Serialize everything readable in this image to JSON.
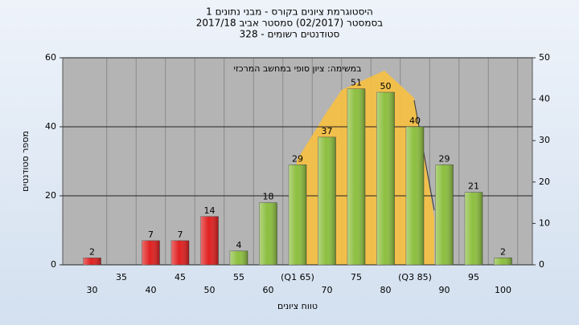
{
  "chart_data": {
    "type": "bar",
    "title": [
      "היסטוגרמת ציונים בקורס - מבני נתונים 1",
      "בסמסטר  (02/2017)  סמסטר אביב 2017/18",
      "סטודנטים רשומים - 328"
    ],
    "annotation": "במשימה: ציון סופי במחשב המרכזי",
    "x_label": "טווח ציונים",
    "y_label": "מספר סטודנטים",
    "categories": [
      "30",
      "35",
      "40",
      "45",
      "50",
      "55",
      "60",
      "(Q1 65)",
      "70",
      "75",
      "80",
      "(Q3 85)",
      "90",
      "95",
      "100"
    ],
    "values": [
      2,
      null,
      7,
      7,
      14,
      4,
      18,
      29,
      37,
      51,
      50,
      40,
      29,
      21,
      2
    ],
    "colors": [
      "#e02020",
      "#e02020",
      "#e02020",
      "#e02020",
      "#e02020",
      "#8cbf3f",
      "#8cbf3f",
      "#8cbf3f",
      "#8cbf3f",
      "#8cbf3f",
      "#8cbf3f",
      "#8cbf3f",
      "#8cbf3f",
      "#8cbf3f",
      "#8cbf3f"
    ],
    "ylim": [
      0,
      60
    ],
    "yticks": [
      0,
      20,
      40,
      60
    ],
    "y2lim": [
      0,
      50
    ],
    "y2ticks": [
      0,
      10,
      20,
      30,
      40,
      50
    ],
    "grid": true
  }
}
